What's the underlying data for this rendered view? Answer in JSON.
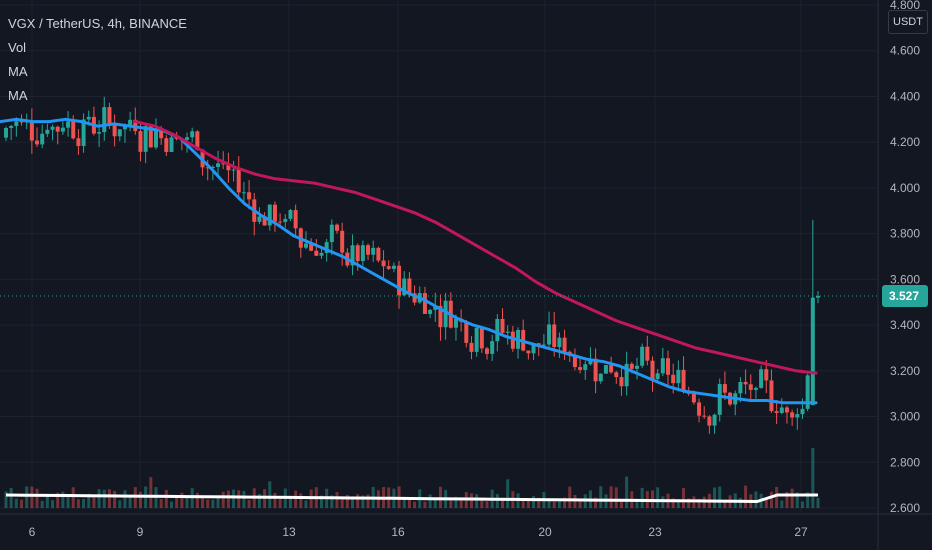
{
  "legend": {
    "title": "VGX / TetherUS, 4h, BINANCE",
    "vol": "Vol",
    "ma1": "MA",
    "ma2": "MA"
  },
  "currency": "USDT",
  "last_price": "3.527",
  "colors": {
    "background": "#131722",
    "up": "#26a69a",
    "down": "#ef5350",
    "ma_fast": "#2196f3",
    "ma_slow": "#c2185b",
    "vol_ma": "#ffffff",
    "price_label": "#26a69a"
  },
  "chart_data": {
    "type": "candlestick",
    "y_axis": {
      "ticks": [
        "4.800",
        "4.600",
        "4.400",
        "4.200",
        "4.000",
        "3.800",
        "3.600",
        "3.400",
        "3.200",
        "3.000",
        "2.800",
        "2.600"
      ],
      "ylim": [
        2.6,
        4.8
      ]
    },
    "x_axis": {
      "ticks": [
        "6",
        "9",
        "13",
        "16",
        "20",
        "23",
        "27"
      ]
    },
    "series": [
      {
        "name": "MA (fast)",
        "values": [
          4.29,
          4.3,
          4.29,
          4.29,
          4.3,
          4.29,
          4.27,
          4.28,
          4.27,
          4.26,
          4.25,
          4.22,
          4.15,
          4.08,
          4.0,
          3.93,
          3.88,
          3.84,
          3.79,
          3.76,
          3.73,
          3.7,
          3.66,
          3.62,
          3.58,
          3.54,
          3.51,
          3.47,
          3.43,
          3.4,
          3.38,
          3.35,
          3.33,
          3.31,
          3.29,
          3.27,
          3.25,
          3.24,
          3.22,
          3.19,
          3.16,
          3.13,
          3.11,
          3.1,
          3.09,
          3.08,
          3.07,
          3.07,
          3.06,
          3.06,
          3.06
        ]
      },
      {
        "name": "MA (slow)",
        "values": [
          4.29,
          4.27,
          4.23,
          4.18,
          4.13,
          4.09,
          4.06,
          4.04,
          4.03,
          4.02,
          4.0,
          3.98,
          3.95,
          3.92,
          3.89,
          3.85,
          3.8,
          3.75,
          3.7,
          3.65,
          3.59,
          3.54,
          3.5,
          3.46,
          3.42,
          3.39,
          3.36,
          3.33,
          3.3,
          3.28,
          3.26,
          3.24,
          3.22,
          3.2,
          3.19
        ]
      }
    ]
  }
}
